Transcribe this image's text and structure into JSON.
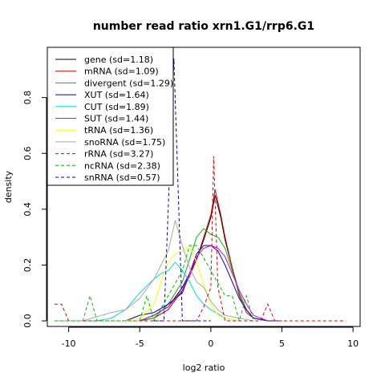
{
  "chart_data": {
    "type": "line",
    "title": "number read ratio xrn1.G1/rrp6.G1",
    "xlabel": "log2 ratio",
    "ylabel": "density",
    "xlim": [
      -11.5,
      10.5
    ],
    "ylim": [
      -0.02,
      0.98
    ],
    "xticks": [
      -10,
      -5,
      0,
      5,
      10
    ],
    "yticks": [
      0.0,
      0.2,
      0.4,
      0.6,
      0.8
    ],
    "legend_position": "top-left",
    "series": [
      {
        "name": "gene (sd=1.18)",
        "color": "#000000",
        "dash": "solid",
        "x": [
          -5,
          -4,
          -3,
          -2,
          -1.5,
          -1,
          -0.5,
          0,
          0.3,
          0.7,
          1,
          1.5,
          2,
          2.5,
          3,
          4,
          5
        ],
        "y": [
          0.0,
          0.02,
          0.05,
          0.12,
          0.17,
          0.22,
          0.29,
          0.37,
          0.45,
          0.37,
          0.29,
          0.19,
          0.1,
          0.04,
          0.01,
          0.0,
          0.0
        ]
      },
      {
        "name": "mRNA (sd=1.09)",
        "color": "#dd0000",
        "dash": "solid",
        "x": [
          -5,
          -4,
          -3,
          -2,
          -1.5,
          -1,
          -0.5,
          0,
          0.3,
          0.7,
          1,
          1.5,
          2,
          2.5,
          3,
          4,
          5
        ],
        "y": [
          0.0,
          0.01,
          0.04,
          0.11,
          0.16,
          0.22,
          0.3,
          0.38,
          0.47,
          0.38,
          0.3,
          0.19,
          0.09,
          0.03,
          0.01,
          0.0,
          0.0
        ]
      },
      {
        "name": "divergent (sd=1.29)",
        "color": "#00bb00",
        "dash": "solid",
        "x": [
          -5,
          -4,
          -3,
          -2,
          -1.5,
          -1,
          -0.5,
          0,
          0.5,
          1,
          1.5,
          2,
          2.5,
          3,
          4,
          5
        ],
        "y": [
          0.0,
          0.01,
          0.06,
          0.14,
          0.22,
          0.3,
          0.33,
          0.31,
          0.3,
          0.26,
          0.18,
          0.1,
          0.04,
          0.01,
          0.0,
          0.0
        ]
      },
      {
        "name": "XUT (sd=1.64)",
        "color": "#0000cc",
        "dash": "solid",
        "x": [
          -6,
          -5,
          -4,
          -3,
          -2,
          -1.5,
          -1,
          -0.5,
          0,
          0.5,
          1,
          1.5,
          2,
          2.5,
          3,
          4,
          5
        ],
        "y": [
          0.0,
          0.02,
          0.03,
          0.06,
          0.1,
          0.17,
          0.24,
          0.27,
          0.27,
          0.25,
          0.2,
          0.14,
          0.08,
          0.04,
          0.01,
          0.0,
          0.0
        ]
      },
      {
        "name": "CUT (sd=1.89)",
        "color": "#00dddd",
        "dash": "solid",
        "x": [
          -10,
          -8,
          -7,
          -6,
          -5,
          -4,
          -3.5,
          -3,
          -2.5,
          -2,
          -1.5,
          -1,
          -0.5,
          0,
          1,
          2
        ],
        "y": [
          0.0,
          0.0,
          0.01,
          0.04,
          0.1,
          0.15,
          0.17,
          0.18,
          0.21,
          0.18,
          0.14,
          0.09,
          0.06,
          0.04,
          0.01,
          0.0
        ]
      },
      {
        "name": "SUT (sd=1.44)",
        "color": "#dd00dd",
        "dash": "solid",
        "x": [
          -5,
          -4,
          -3,
          -2,
          -1.5,
          -1,
          -0.5,
          0,
          0.5,
          1,
          1.5,
          2,
          2.5,
          3,
          3.5,
          4
        ],
        "y": [
          0.0,
          0.02,
          0.05,
          0.11,
          0.17,
          0.23,
          0.26,
          0.27,
          0.26,
          0.23,
          0.17,
          0.11,
          0.06,
          0.02,
          0.01,
          0.0
        ]
      },
      {
        "name": "tRNA (sd=1.36)",
        "color": "#ffff00",
        "dash": "solid",
        "x": [
          -6,
          -5,
          -4,
          -3.5,
          -3,
          -2.5,
          -2,
          -1.5,
          -1,
          -0.5,
          0,
          0.5,
          1,
          2
        ],
        "y": [
          0.0,
          0.01,
          0.06,
          0.14,
          0.21,
          0.24,
          0.25,
          0.27,
          0.21,
          0.13,
          0.06,
          0.02,
          0.01,
          0.0
        ]
      },
      {
        "name": "snoRNA (sd=1.75)",
        "color": "#a8a8a8",
        "dash": "solid",
        "x": [
          -11,
          -9,
          -7,
          -6,
          -5,
          -4,
          -3.5,
          -3,
          -2.5,
          -2,
          -1.5,
          -1,
          -0.5,
          0,
          0.5,
          1,
          2,
          3
        ],
        "y": [
          0.0,
          0.0,
          0.03,
          0.04,
          0.08,
          0.15,
          0.2,
          0.25,
          0.36,
          0.27,
          0.19,
          0.14,
          0.12,
          0.07,
          0.04,
          0.02,
          0.01,
          0.0
        ]
      },
      {
        "name": "rRNA (sd=3.27)",
        "color": "#dd0000",
        "dash": "dashed",
        "x": [
          -11,
          -10.5,
          -10,
          -9.5,
          -1.5,
          -1,
          -0.5,
          0,
          0.2,
          0.5,
          1,
          3,
          3.5,
          4,
          4.5,
          9.5
        ],
        "y": [
          0.06,
          0.06,
          0.0,
          0.0,
          0.0,
          0.0,
          0.05,
          0.12,
          0.59,
          0.12,
          0.0,
          0.0,
          0.0,
          0.06,
          0.0,
          0.0
        ]
      },
      {
        "name": "ncRNA (sd=2.38)",
        "color": "#00bb00",
        "dash": "dashed",
        "x": [
          -11,
          -9,
          -8.5,
          -8,
          -5,
          -4.5,
          -4,
          -3,
          -2,
          -1.5,
          -1,
          0,
          1,
          1.5,
          2,
          2.5,
          3
        ],
        "y": [
          0.0,
          0.0,
          0.09,
          0.0,
          0.0,
          0.09,
          0.0,
          0.09,
          0.18,
          0.27,
          0.27,
          0.18,
          0.09,
          0.09,
          0.0,
          0.09,
          0.0
        ]
      },
      {
        "name": "snRNA (sd=0.57)",
        "color": "#0000cc",
        "dash": "dashed",
        "x": [
          -4,
          -3.3,
          -2.6,
          -2,
          -1.5,
          0
        ],
        "y": [
          0.0,
          0.0,
          0.94,
          0.0,
          0.0,
          0.0
        ]
      }
    ]
  }
}
